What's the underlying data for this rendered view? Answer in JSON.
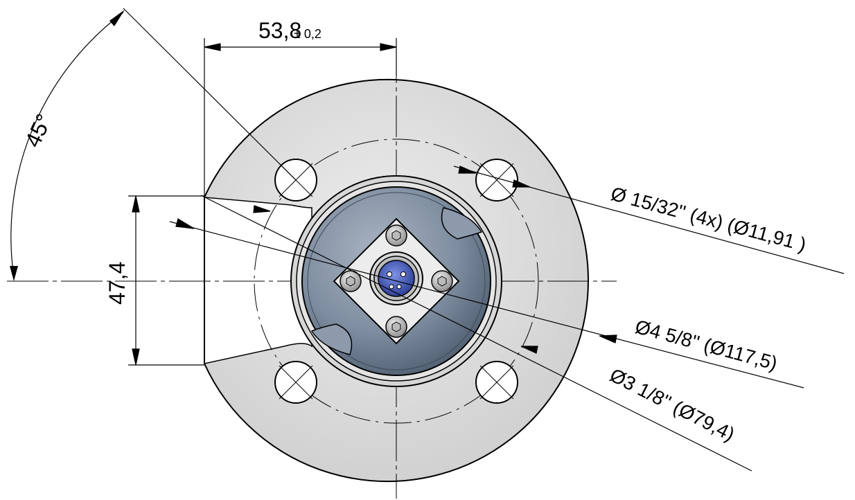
{
  "dimensions": {
    "width": {
      "value": "53,8",
      "tolerance": "± 0,2"
    },
    "height": {
      "value": "47,4"
    },
    "angle": {
      "value": "45°"
    }
  },
  "callouts": {
    "bolt_holes": "Ø 15/32'' (4x) (Ø11,91 )",
    "flange_outer": "Ø4 5/8'' (Ø117,5)",
    "bolt_circle": "Ø3 1/8'' (Ø79,4)"
  },
  "colors": {
    "flange": "#dcdcdc",
    "body_blue": "#6f7f94",
    "connector": "#4a5fbf",
    "plate": "#e8e8e8"
  }
}
